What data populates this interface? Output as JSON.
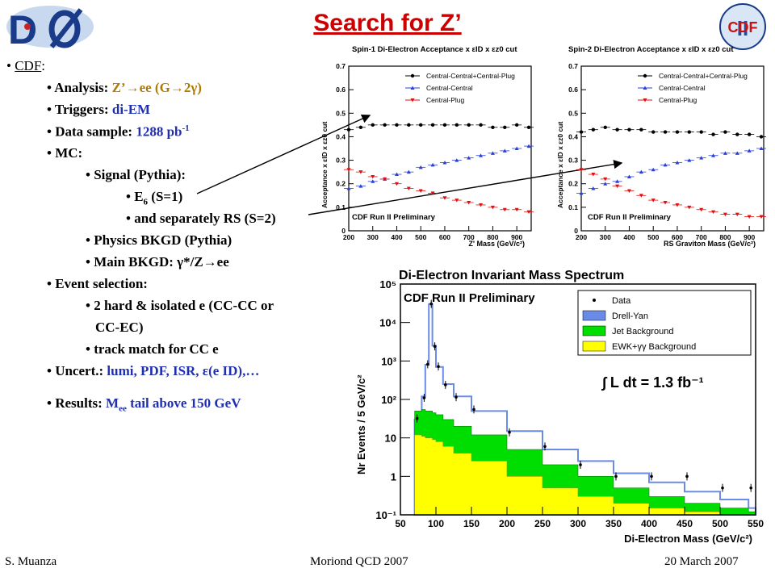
{
  "slide": {
    "title": "Search for Z’",
    "footer_left": "S. Muanza",
    "footer_center": "Moriond QCD 2007",
    "footer_right": "20 March 2007",
    "logo_right_text": "CDF",
    "logo_right_numeral": "II"
  },
  "bullets": {
    "cdf": "CDF",
    "analysis_k": "Analysis: ",
    "analysis_v": "Z’→ee (G→2γ)",
    "triggers_k": "Triggers: ",
    "triggers_v": "di-EM",
    "sample_k": "Data sample: ",
    "sample_v": "1288 pb",
    "sample_sup": "-1",
    "mc_k": "MC:",
    "signal": "Signal (Pythia):",
    "e6_a": "E",
    "e6_sub": "6",
    "e6_b": " (S=1)",
    "rs": "and separately RS (S=2)",
    "physbkgd": "Physics BKGD (Pythia)",
    "mainbkgd": "Main BKGD: γ*/Z→ee",
    "evsel_k": "Event selection:",
    "hard1": "2 hard & isolated e (CC-CC or",
    "hard2": "CC-EC)",
    "track": "track match for CC e",
    "uncert_k": "Uncert.: ",
    "uncert_v": "lumi, PDF, ISR, ε(e ID),…",
    "results_k": "Results: ",
    "results_v1": "M",
    "results_sub": "ee",
    "results_v2": " tail above 150 GeV"
  },
  "colors": {
    "title": "#cc0000",
    "bullet_value": "#1f2fb0",
    "central_central_plug": "#000000",
    "central_central": "#2a3fd8",
    "central_plug": "#e01010",
    "drell_yan": "#6a8be8",
    "jet_background": "#00dd00",
    "ewk_background": "#ffff00"
  },
  "chart_data": [
    {
      "type": "line",
      "title": "Spin-1 Di-Electron Acceptance x εID x εz0 cut",
      "xlabel": "Z' Mass (GeV/c²)",
      "ylabel": "Acceptance x εID x εz0 cut",
      "annotation": "CDF Run II Preliminary",
      "xlim": [
        200,
        960
      ],
      "ylim": [
        0,
        0.7
      ],
      "x_ticks": [
        200,
        300,
        400,
        500,
        600,
        700,
        800,
        900
      ],
      "y_ticks": [
        0,
        0.1,
        0.2,
        0.3,
        0.4,
        0.5,
        0.6,
        0.7
      ],
      "legend_position": "top-right",
      "x": [
        200,
        250,
        300,
        350,
        400,
        450,
        500,
        550,
        600,
        650,
        700,
        750,
        800,
        850,
        900,
        950
      ],
      "series": [
        {
          "name": "Central-Central+Central-Plug",
          "values": [
            0.43,
            0.44,
            0.45,
            0.45,
            0.45,
            0.45,
            0.45,
            0.45,
            0.45,
            0.45,
            0.45,
            0.45,
            0.44,
            0.44,
            0.45,
            0.44
          ]
        },
        {
          "name": "Central-Central",
          "values": [
            0.18,
            0.19,
            0.21,
            0.22,
            0.24,
            0.25,
            0.27,
            0.28,
            0.29,
            0.3,
            0.31,
            0.32,
            0.33,
            0.34,
            0.35,
            0.36
          ]
        },
        {
          "name": "Central-Plug",
          "values": [
            0.26,
            0.25,
            0.23,
            0.22,
            0.2,
            0.18,
            0.17,
            0.16,
            0.14,
            0.13,
            0.12,
            0.11,
            0.1,
            0.09,
            0.09,
            0.08
          ]
        }
      ]
    },
    {
      "type": "line",
      "title": "Spin-2 Di-Electron Acceptance x εID x εz0 cut",
      "xlabel": "RS Graviton Mass (GeV/c²)",
      "ylabel": "Acceptance x εID x εz0 cut",
      "annotation": "CDF Run II Preliminary",
      "xlim": [
        200,
        960
      ],
      "ylim": [
        0,
        0.7
      ],
      "x_ticks": [
        200,
        300,
        400,
        500,
        600,
        700,
        800,
        900
      ],
      "y_ticks": [
        0,
        0.1,
        0.2,
        0.3,
        0.4,
        0.5,
        0.6,
        0.7
      ],
      "legend_position": "top-right",
      "x": [
        200,
        250,
        300,
        350,
        400,
        450,
        500,
        550,
        600,
        650,
        700,
        750,
        800,
        850,
        900,
        950
      ],
      "series": [
        {
          "name": "Central-Central+Central-Plug",
          "values": [
            0.42,
            0.43,
            0.44,
            0.43,
            0.43,
            0.43,
            0.42,
            0.42,
            0.42,
            0.42,
            0.42,
            0.41,
            0.42,
            0.41,
            0.41,
            0.4
          ]
        },
        {
          "name": "Central-Central",
          "values": [
            0.16,
            0.18,
            0.2,
            0.21,
            0.23,
            0.25,
            0.26,
            0.28,
            0.29,
            0.3,
            0.31,
            0.32,
            0.33,
            0.33,
            0.34,
            0.35
          ]
        },
        {
          "name": "Central-Plug",
          "values": [
            0.26,
            0.24,
            0.22,
            0.19,
            0.17,
            0.15,
            0.13,
            0.12,
            0.11,
            0.1,
            0.09,
            0.08,
            0.07,
            0.07,
            0.06,
            0.06
          ]
        }
      ]
    },
    {
      "type": "area",
      "title": "Di-Electron Invariant Mass Spectrum",
      "xlabel": "Di-Electron Mass (GeV/c²)",
      "ylabel": "Nr Events / 5 GeV/c²",
      "annotation": "CDF Run II Preliminary",
      "luminosity": "∫ L dt = 1.3 fb⁻¹",
      "y_scale": "log",
      "xlim": [
        50,
        550
      ],
      "ylim": [
        0.1,
        100000
      ],
      "x_ticks": [
        50,
        100,
        150,
        200,
        250,
        300,
        350,
        400,
        450,
        500,
        550
      ],
      "y_ticks": [
        "10⁻¹",
        "1",
        "10",
        "10²",
        "10³",
        "10⁴",
        "10⁵"
      ],
      "legend_position": "top-right",
      "legend": [
        "Data",
        "Drell-Yan",
        "Jet Background",
        "EWK+γγ Background"
      ],
      "x": [
        70,
        80,
        85,
        90,
        95,
        100,
        110,
        125,
        150,
        200,
        250,
        300,
        350,
        400,
        450,
        500,
        540
      ],
      "series": [
        {
          "name": "Drell-Yan",
          "values": [
            30,
            120,
            800,
            30000,
            2500,
            700,
            250,
            120,
            50,
            15,
            5,
            2.5,
            1.2,
            0.7,
            0.4,
            0.25,
            0.15
          ]
        },
        {
          "name": "Jet Background",
          "values": [
            50,
            55,
            50,
            50,
            45,
            40,
            30,
            20,
            12,
            5,
            2,
            1,
            0.5,
            0.3,
            0.2,
            0.15,
            0.12
          ]
        },
        {
          "name": "EWK+γγ Background",
          "values": [
            12,
            11,
            10,
            10,
            9,
            8,
            6,
            4,
            2.5,
            1,
            0.5,
            0.3,
            0.2,
            0.15,
            0.12,
            0.1,
            0.1
          ]
        },
        {
          "name": "Data",
          "values": [
            32,
            110,
            820,
            30500,
            2400,
            720,
            240,
            115,
            55,
            14,
            6,
            2,
            1,
            1,
            1,
            0.5,
            0.5
          ]
        }
      ]
    }
  ]
}
